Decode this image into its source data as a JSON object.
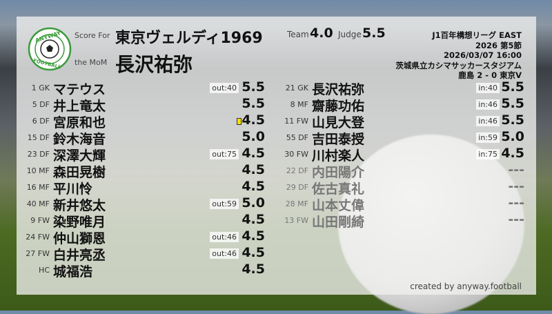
{
  "logo": {
    "top_text": "ANYWAY",
    "bottom_text": "FOOTBALL",
    "color": "#3a9a3a"
  },
  "header": {
    "score_for_label": "Score For",
    "team_name": "東京ヴェルディ1969",
    "mom_label": "the MoM",
    "mom_name": "長沢祐弥",
    "team_label": "Team",
    "team_score": "4.0",
    "judge_label": "Judge",
    "judge_score": "5.5"
  },
  "match": {
    "league": "J1百年構想リーグ EAST",
    "round": "2026 第5節",
    "datetime": "2026/03/07 16:00",
    "stadium": "茨城県立カシマサッカースタジアム",
    "result": "鹿島 2 - 0 東京V"
  },
  "left_players": [
    {
      "pos": "1 GK",
      "name": "マテウス",
      "badge": "out:40",
      "score": "5.5"
    },
    {
      "pos": "5 DF",
      "name": "井上竜太",
      "badge": "",
      "score": "5.5"
    },
    {
      "pos": "6 DF",
      "name": "宮原和也",
      "badge": "",
      "score": "4.5",
      "yellow_card": true
    },
    {
      "pos": "15 DF",
      "name": "鈴木海音",
      "badge": "",
      "score": "5.0"
    },
    {
      "pos": "23 DF",
      "name": "深澤大輝",
      "badge": "out:75",
      "score": "4.5"
    },
    {
      "pos": "10 MF",
      "name": "森田晃樹",
      "badge": "",
      "score": "4.5"
    },
    {
      "pos": "16 MF",
      "name": "平川怜",
      "badge": "",
      "score": "4.5"
    },
    {
      "pos": "40 MF",
      "name": "新井悠太",
      "badge": "out:59",
      "score": "5.0"
    },
    {
      "pos": "9 FW",
      "name": "染野唯月",
      "badge": "",
      "score": "4.5"
    },
    {
      "pos": "24 FW",
      "name": "仲山獅恩",
      "badge": "out:46",
      "score": "4.5"
    },
    {
      "pos": "27 FW",
      "name": "白井亮丞",
      "badge": "out:46",
      "score": "4.5"
    },
    {
      "pos": "HC",
      "name": "城福浩",
      "badge": "",
      "score": "4.5"
    }
  ],
  "right_players": [
    {
      "pos": "21 GK",
      "name": "長沢祐弥",
      "badge": "in:40",
      "score": "5.5"
    },
    {
      "pos": "8 MF",
      "name": "齋藤功佑",
      "badge": "in:46",
      "score": "5.5"
    },
    {
      "pos": "11 FW",
      "name": "山見大登",
      "badge": "in:46",
      "score": "5.5"
    },
    {
      "pos": "55 DF",
      "name": "吉田泰授",
      "badge": "in:59",
      "score": "5.0"
    },
    {
      "pos": "30 FW",
      "name": "川村楽人",
      "badge": "in:75",
      "score": "4.5"
    },
    {
      "pos": "22 DF",
      "name": "内田陽介",
      "badge": "",
      "score": "---",
      "unused": true
    },
    {
      "pos": "29 DF",
      "name": "佐古真礼",
      "badge": "",
      "score": "---",
      "unused": true
    },
    {
      "pos": "28 MF",
      "name": "山本丈偉",
      "badge": "",
      "score": "---",
      "unused": true
    },
    {
      "pos": "13 FW",
      "name": "山田剛綺",
      "badge": "",
      "score": "---",
      "unused": true
    }
  ],
  "footer": {
    "credit": "created by anyway.football"
  }
}
